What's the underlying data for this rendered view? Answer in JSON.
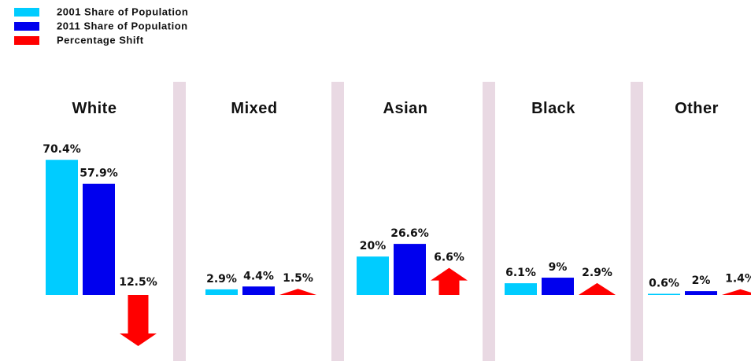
{
  "chart_data": {
    "type": "bar",
    "categories": [
      "White",
      "Mixed",
      "Asian",
      "Black",
      "Other"
    ],
    "series": [
      {
        "name": "2001 Share of Population",
        "color": "#00ccff",
        "values": [
          70.4,
          2.9,
          20,
          6.1,
          0.6
        ],
        "value_labels": [
          "70.4%",
          "2.9%",
          "20%",
          "6.1%",
          "0.6%"
        ]
      },
      {
        "name": "2011 Share of Population",
        "color": "#0000ee",
        "values": [
          57.9,
          4.4,
          26.6,
          9,
          2
        ],
        "value_labels": [
          "57.9%",
          "4.4%",
          "26.6%",
          "9%",
          "2%"
        ]
      },
      {
        "name": "Percentage Shift",
        "color": "#ff0000",
        "values": [
          -12.5,
          1.5,
          6.6,
          2.9,
          1.4
        ],
        "value_labels": [
          "12.5%",
          "1.5%",
          "6.6%",
          "2.9%",
          "1.4%"
        ]
      }
    ]
  }
}
